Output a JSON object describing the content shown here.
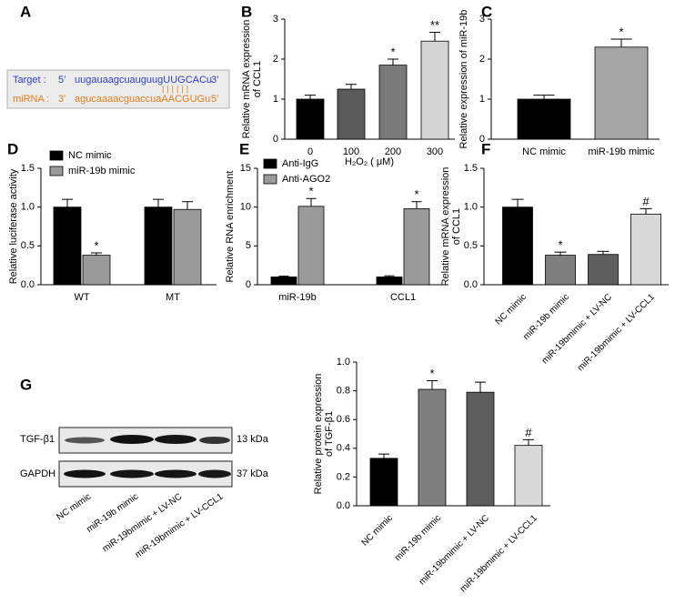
{
  "panel_a": {
    "label": "A",
    "target": {
      "name": "Target :",
      "start": "5’",
      "seq": "uugauaagcuauguugUUGCACu",
      "end": "3’"
    },
    "pairing": "||||||",
    "mirna": {
      "name": "miRNA :",
      "start": "3’",
      "seq": "agucaaaacguaccuaAACGUGu",
      "end": "5’"
    }
  },
  "blot": {
    "label": "G",
    "rows": [
      {
        "name": "TGF-β1",
        "size": "13 kDa"
      },
      {
        "name": "GAPDH",
        "size": "37 kDa"
      }
    ],
    "lanes": [
      "NC mimic",
      "miR-19b mimic",
      "miR-19bmimic + LV-NC",
      "miR-19bmimic + LV-CCL1"
    ]
  },
  "chart_data": [
    {
      "type": "bar",
      "label": "B",
      "ylabel": [
        "Relative mRNA expression",
        "of CCL1"
      ],
      "xlabel": "H₂O₂ ( μM)",
      "categories": [
        "0",
        "100",
        "200",
        "300"
      ],
      "values": [
        1.0,
        1.25,
        1.85,
        2.45
      ],
      "errors": [
        0.1,
        0.12,
        0.15,
        0.22
      ],
      "annotations": [
        null,
        null,
        "*",
        "**"
      ],
      "colors": [
        "#000000",
        "#5a5a5a",
        "#7a7a7a",
        "#d4d4d4"
      ],
      "ylim": [
        0,
        3
      ],
      "yticks": [
        0,
        1,
        2,
        3
      ]
    },
    {
      "type": "bar",
      "label": "C",
      "ylabel": [
        "Relative expression of miR-19b"
      ],
      "categories": [
        "NC mimic",
        "miR-19b mimic"
      ],
      "values": [
        1.0,
        2.3
      ],
      "errors": [
        0.1,
        0.2
      ],
      "annotations": [
        null,
        "*"
      ],
      "colors": [
        "#000000",
        "#a6a6a6"
      ],
      "ylim": [
        0,
        3
      ],
      "yticks": [
        0,
        1,
        2,
        3
      ]
    },
    {
      "type": "bar",
      "label": "D",
      "ylabel": [
        "Relative luciferase activity"
      ],
      "categories": [
        "WT",
        "MT"
      ],
      "series": [
        {
          "name": "NC mimic",
          "color": "#000000",
          "values": [
            1.0,
            1.0
          ],
          "errors": [
            0.1,
            0.1
          ],
          "annotations": [
            null,
            null
          ]
        },
        {
          "name": "miR-19b mimic",
          "color": "#9a9a9a",
          "values": [
            0.38,
            0.97
          ],
          "errors": [
            0.03,
            0.1
          ],
          "annotations": [
            "*",
            null
          ]
        }
      ],
      "ylim": [
        0,
        1.5
      ],
      "yticks": [
        {
          "value": 0,
          "label": "0.0"
        },
        0.5,
        {
          "value": 1,
          "label": "1.0"
        },
        1.5
      ]
    },
    {
      "type": "bar",
      "label": "E",
      "ylabel": [
        "Relative RNA enrichment"
      ],
      "categories": [
        "miR-19b",
        "CCL1"
      ],
      "series": [
        {
          "name": "Anti-IgG",
          "color": "#000000",
          "values": [
            1.0,
            1.0
          ],
          "errors": [
            0.1,
            0.15
          ],
          "annotations": [
            null,
            null
          ]
        },
        {
          "name": "Anti-AGO2",
          "color": "#9a9a9a",
          "values": [
            10.1,
            9.8
          ],
          "errors": [
            1.0,
            0.9
          ],
          "annotations": [
            "*",
            "*"
          ]
        }
      ],
      "ylim": [
        0,
        15
      ],
      "yticks": [
        0,
        5,
        10,
        15
      ]
    },
    {
      "type": "bar",
      "label": "F",
      "ylabel": [
        "Relative mRNA expression",
        "of CCL1"
      ],
      "categories": [
        "NC mimic",
        "miR-19b mimic",
        "miR-19bmimic + LV-NC",
        "miR-19bmimic + LV-CCL1"
      ],
      "values": [
        1.0,
        0.38,
        0.39,
        0.91
      ],
      "errors": [
        0.1,
        0.04,
        0.04,
        0.07
      ],
      "annotations": [
        null,
        "*",
        null,
        "#"
      ],
      "colors": [
        "#000000",
        "#7f7f7f",
        "#5e5e5e",
        "#d9d9d9"
      ],
      "ylim": [
        0,
        1.5
      ],
      "yticks": [
        {
          "value": 0,
          "label": "0.0"
        },
        0.5,
        {
          "value": 1,
          "label": "1.0"
        },
        1.5
      ]
    },
    {
      "type": "bar",
      "label": null,
      "ylabel": [
        "Relative protein expression",
        "of TGF-β1"
      ],
      "categories": [
        "NC mimic",
        "miR-19b mimic",
        "miR-19bmimic + LV-NC",
        "miR-19bmimic + LV-CCL1"
      ],
      "values": [
        0.33,
        0.81,
        0.79,
        0.42
      ],
      "errors": [
        0.03,
        0.06,
        0.07,
        0.04
      ],
      "annotations": [
        null,
        "*",
        null,
        "#"
      ],
      "colors": [
        "#000000",
        "#7f7f7f",
        "#5e5e5e",
        "#d9d9d9"
      ],
      "ylim": [
        0,
        1
      ],
      "yticks": [
        {
          "value": 0,
          "label": "0.0"
        },
        0.2,
        0.4,
        0.6,
        0.8,
        {
          "value": 1,
          "label": "1.0"
        }
      ]
    }
  ]
}
